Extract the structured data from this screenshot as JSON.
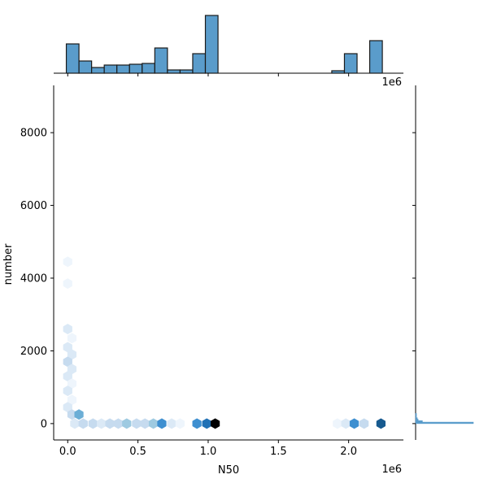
{
  "chart_data": {
    "type": "hexbin_joint",
    "xlabel": "N50",
    "ylabel": "number",
    "x_offset_label": "1e6",
    "x_ticks": [
      0.0,
      0.5,
      1.0,
      1.5,
      2.0
    ],
    "x_tick_labels": [
      "0.0",
      "0.5",
      "1.0",
      "1.5",
      "2.0"
    ],
    "y_ticks": [
      0,
      2000,
      4000,
      6000,
      8000
    ],
    "y_tick_labels": [
      "0",
      "2000",
      "4000",
      "6000",
      "8000"
    ],
    "xlim": [
      -0.1,
      2.39
    ],
    "ylim": [
      -450,
      9300
    ],
    "colors": {
      "hist_fill": "#5a9ccb",
      "hist_edge": "#1a1a1a",
      "hex_scale": [
        "#eef5fc",
        "#dbe9f6",
        "#c6dbef",
        "#9ecae1",
        "#6baed6",
        "#3e8fd0",
        "#2171b5",
        "#175a8f",
        "#000000"
      ]
    },
    "top_histogram": {
      "bin_edges": [
        -0.01,
        0.08,
        0.17,
        0.26,
        0.35,
        0.44,
        0.53,
        0.62,
        0.71,
        0.8,
        0.89,
        0.98,
        1.07,
        1.16,
        1.25,
        1.34,
        1.43,
        1.52,
        1.61,
        1.7,
        1.79,
        1.88,
        1.97,
        2.06,
        2.15,
        2.24
      ],
      "counts": [
        36,
        15,
        7,
        10,
        10,
        11,
        12,
        31,
        4,
        4,
        24,
        71,
        0,
        0,
        0,
        0,
        0,
        0,
        0,
        0,
        0,
        3,
        24,
        0,
        40
      ]
    },
    "right_histogram": {
      "note_free": true,
      "bin_edges": [
        0,
        40,
        80,
        120,
        160,
        200,
        240,
        280
      ],
      "counts": [
        68,
        8,
        3,
        2,
        1,
        1,
        1
      ]
    },
    "hexbins": [
      {
        "x": 0.0,
        "y": 4450,
        "level": 0
      },
      {
        "x": 0.0,
        "y": 3850,
        "level": 0
      },
      {
        "x": 0.0,
        "y": 2600,
        "level": 1
      },
      {
        "x": 0.03,
        "y": 2350,
        "level": 0
      },
      {
        "x": 0.0,
        "y": 2100,
        "level": 1
      },
      {
        "x": 0.03,
        "y": 1900,
        "level": 1
      },
      {
        "x": 0.0,
        "y": 1700,
        "level": 2
      },
      {
        "x": 0.03,
        "y": 1500,
        "level": 1
      },
      {
        "x": 0.0,
        "y": 1300,
        "level": 1
      },
      {
        "x": 0.03,
        "y": 1100,
        "level": 0
      },
      {
        "x": 0.0,
        "y": 900,
        "level": 1
      },
      {
        "x": 0.03,
        "y": 650,
        "level": 0
      },
      {
        "x": 0.0,
        "y": 450,
        "level": 1
      },
      {
        "x": 0.03,
        "y": 250,
        "level": 2
      },
      {
        "x": 0.08,
        "y": 250,
        "level": 4
      },
      {
        "x": 0.05,
        "y": 0,
        "level": 1
      },
      {
        "x": 0.11,
        "y": 0,
        "level": 2
      },
      {
        "x": 0.18,
        "y": 0,
        "level": 2
      },
      {
        "x": 0.24,
        "y": 0,
        "level": 1
      },
      {
        "x": 0.3,
        "y": 0,
        "level": 2
      },
      {
        "x": 0.36,
        "y": 0,
        "level": 2
      },
      {
        "x": 0.42,
        "y": 0,
        "level": 3
      },
      {
        "x": 0.49,
        "y": 0,
        "level": 2
      },
      {
        "x": 0.55,
        "y": 0,
        "level": 2
      },
      {
        "x": 0.61,
        "y": 0,
        "level": 3
      },
      {
        "x": 0.67,
        "y": 0,
        "level": 5
      },
      {
        "x": 0.74,
        "y": 0,
        "level": 1
      },
      {
        "x": 0.8,
        "y": 0,
        "level": 0
      },
      {
        "x": 0.92,
        "y": 0,
        "level": 5
      },
      {
        "x": 0.99,
        "y": 0,
        "level": 6
      },
      {
        "x": 1.05,
        "y": 0,
        "level": 8
      },
      {
        "x": 1.92,
        "y": 0,
        "level": 0
      },
      {
        "x": 1.98,
        "y": 0,
        "level": 1
      },
      {
        "x": 2.04,
        "y": 0,
        "level": 5
      },
      {
        "x": 2.11,
        "y": 0,
        "level": 2
      },
      {
        "x": 2.23,
        "y": 0,
        "level": 7
      }
    ]
  }
}
